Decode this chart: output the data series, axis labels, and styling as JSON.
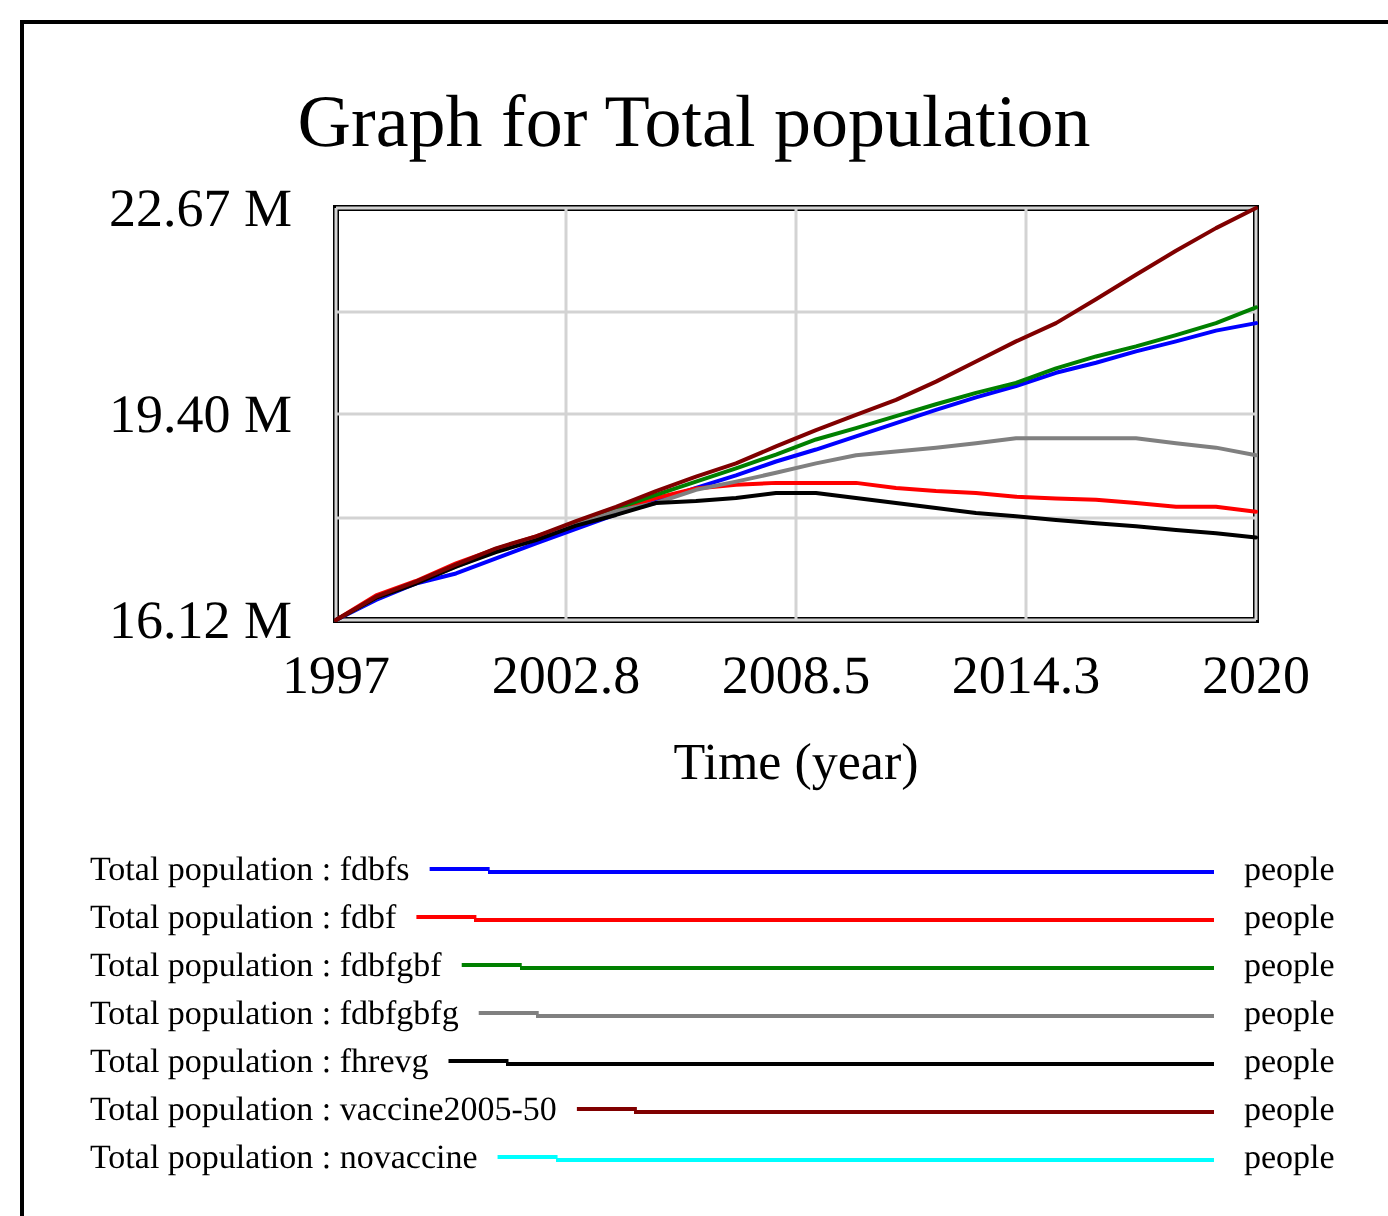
{
  "chart_data": {
    "type": "line",
    "title": "Graph for Total population",
    "xlabel": "Time (year)",
    "ylabel": "people",
    "x": [
      1997,
      1998,
      1999,
      2000,
      2001,
      2002,
      2003,
      2004,
      2005,
      2006,
      2007,
      2008,
      2009,
      2010,
      2011,
      2012,
      2013,
      2014,
      2015,
      2016,
      2017,
      2018,
      2019,
      2020
    ],
    "xlim": [
      1997,
      2020
    ],
    "xticks": [
      1997,
      {
        "value": 2002.75,
        "label": "2002.8"
      },
      2008.5,
      {
        "value": 2014.25,
        "label": "2014.3"
      },
      2020
    ],
    "ylim": [
      16.12,
      22.67
    ],
    "yticks": [
      {
        "value": 16.12,
        "label": "16.12 M"
      },
      {
        "value": 17.76,
        "label": null
      },
      {
        "value": 19.4,
        "label": "19.40 M"
      },
      {
        "value": 21.03,
        "label": null
      },
      {
        "value": 22.67,
        "label": "22.67 M"
      }
    ],
    "grid": true,
    "legend": "bottom",
    "marker": "none",
    "line_style": "solid",
    "series": [
      {
        "name": "Total population : fdbfs",
        "color": "#0000ff",
        "values": [
          16.12,
          16.44,
          16.7,
          16.86,
          17.1,
          17.34,
          17.57,
          17.8,
          18.0,
          18.22,
          18.42,
          18.64,
          18.83,
          19.04,
          19.25,
          19.46,
          19.66,
          19.84,
          20.05,
          20.21,
          20.39,
          20.55,
          20.72,
          20.84
        ]
      },
      {
        "name": "Total population : fdbf",
        "color": "#ff0000",
        "values": [
          16.12,
          16.51,
          16.74,
          17.02,
          17.25,
          17.45,
          17.66,
          17.87,
          18.06,
          18.21,
          18.27,
          18.3,
          18.3,
          18.3,
          18.22,
          18.17,
          18.14,
          18.08,
          18.05,
          18.03,
          17.98,
          17.92,
          17.92,
          17.84
        ]
      },
      {
        "name": "Total population : fdbfgbf",
        "color": "#008000",
        "values": [
          null,
          null,
          null,
          null,
          null,
          null,
          17.66,
          17.89,
          18.11,
          18.32,
          18.53,
          18.75,
          18.99,
          19.17,
          19.36,
          19.55,
          19.73,
          19.89,
          20.12,
          20.31,
          20.47,
          20.65,
          20.84,
          21.09
        ]
      },
      {
        "name": "Total population : fdbfgbfg",
        "color": "#808080",
        "values": [
          16.12,
          16.47,
          16.71,
          16.97,
          17.22,
          17.42,
          17.63,
          17.85,
          17.98,
          18.19,
          18.32,
          18.46,
          18.61,
          18.74,
          18.8,
          18.86,
          18.93,
          19.01,
          19.01,
          19.01,
          19.01,
          18.93,
          18.86,
          18.74
        ]
      },
      {
        "name": "Total population : fhrevg",
        "color": "#000000",
        "values": [
          16.12,
          16.47,
          16.7,
          16.97,
          17.2,
          17.39,
          17.62,
          17.79,
          17.98,
          18.01,
          18.06,
          18.14,
          18.14,
          18.06,
          17.98,
          17.9,
          17.82,
          17.77,
          17.71,
          17.66,
          17.61,
          17.55,
          17.5,
          17.43
        ]
      },
      {
        "name": "Total population : vaccine2005-50",
        "color": "#800000",
        "values": [
          16.12,
          16.49,
          16.73,
          17.0,
          17.26,
          17.45,
          17.69,
          17.92,
          18.17,
          18.4,
          18.61,
          18.88,
          19.14,
          19.38,
          19.62,
          19.91,
          20.23,
          20.55,
          20.84,
          21.22,
          21.61,
          21.99,
          22.35,
          22.67
        ]
      },
      {
        "name": "Total population : novaccine",
        "color": "#00ffff",
        "values": [
          null,
          null,
          null,
          null,
          null,
          null,
          null,
          null,
          null,
          null,
          null,
          null,
          null,
          null,
          null,
          null,
          null,
          null,
          null,
          null,
          null,
          null,
          null,
          null
        ]
      }
    ]
  }
}
